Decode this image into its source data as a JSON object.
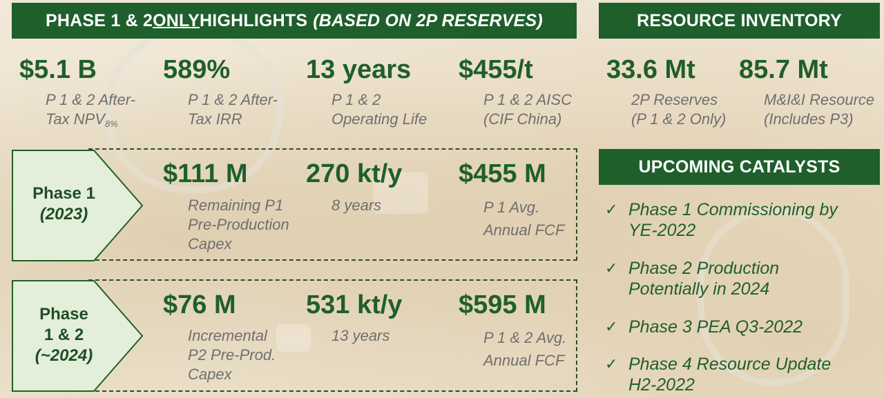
{
  "highlights": {
    "title_prefix": "PHASE 1 & 2 ",
    "title_only": "ONLY",
    "title_mid": " HIGHLIGHTS",
    "title_italic": "(BASED ON 2P RESERVES)",
    "metrics": [
      {
        "value": "$5.1 B",
        "label_line1": "P 1 & 2 After-",
        "label_line2": "Tax NPV",
        "label_sub": "8%"
      },
      {
        "value": "589%",
        "label_line1": "P 1 & 2 After-",
        "label_line2": "Tax IRR"
      },
      {
        "value": "13 years",
        "label_line1": "P 1 & 2",
        "label_line2": "Operating Life"
      },
      {
        "value": "$455/t",
        "label_line1": "P 1 & 2 AISC",
        "label_line2": "(CIF China)"
      }
    ]
  },
  "phase1": {
    "label": "Phase 1",
    "year": "(2023)",
    "metrics": [
      {
        "value": "$111 M",
        "label_line1": "Remaining P1",
        "label_line2": "Pre-Production",
        "label_line3": "Capex"
      },
      {
        "value": "270 kt/y",
        "label_line1": "8 years"
      },
      {
        "value": "$455 M",
        "label_line1": "P 1 Avg.",
        "label_line2": "Annual FCF"
      }
    ]
  },
  "phase2": {
    "label_line1": "Phase",
    "label_line2": "1 & 2",
    "year": "(~2024)",
    "metrics": [
      {
        "value": "$76 M",
        "label_line1": "Incremental",
        "label_line2": "P2 Pre-Prod.",
        "label_line3": "Capex"
      },
      {
        "value": "531 kt/y",
        "label_line1": "13 years"
      },
      {
        "value": "$595 M",
        "label_line1": "P 1 & 2 Avg.",
        "label_line2": "Annual FCF"
      }
    ]
  },
  "resource": {
    "title": "RESOURCE INVENTORY",
    "metrics": [
      {
        "value": "33.6 Mt",
        "label_line1": "2P Reserves",
        "label_line2": "(P 1 & 2 Only)"
      },
      {
        "value": "85.7 Mt",
        "label_line1": "M&I&I Resource",
        "label_line2": "(Includes P3)"
      }
    ]
  },
  "catalysts": {
    "title": "UPCOMING CATALYSTS",
    "check_symbol": "✓",
    "items": [
      {
        "line1": "Phase 1 Commissioning by",
        "line2": "YE-2022"
      },
      {
        "line1": "Phase 2 Production",
        "line2": "Potentially in 2024"
      },
      {
        "line1": "Phase 3 PEA Q3-2022"
      },
      {
        "line1": "Phase 4 Resource Update",
        "line2": "H2-2022"
      }
    ]
  },
  "colors": {
    "brand_green": "#1f5f2c",
    "chevron_fill": "#e3efd9",
    "label_gray": "#6f6f6f"
  }
}
